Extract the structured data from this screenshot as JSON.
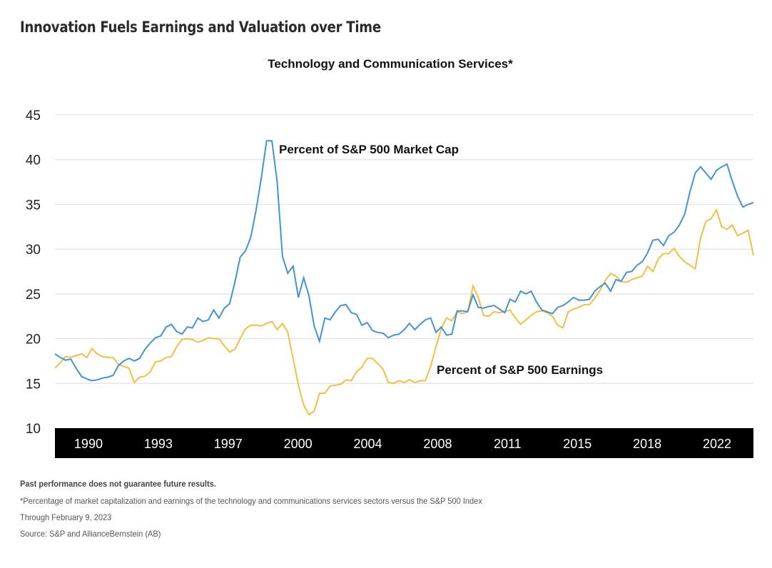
{
  "header": {
    "title": "Innovation Fuels Earnings and Valuation over Time"
  },
  "chart_data": {
    "type": "line",
    "title": "Technology and Communication Services*",
    "xlabel": "",
    "ylabel": "",
    "ylim": [
      10,
      45
    ],
    "yticks": [
      "45",
      "40",
      "35",
      "30",
      "25",
      "20",
      "15",
      "10"
    ],
    "ytick_values": [
      45,
      40,
      35,
      30,
      25,
      20,
      15,
      10
    ],
    "xticks": [
      "1990",
      "1993",
      "1997",
      "2000",
      "2004",
      "2008",
      "2011",
      "2015",
      "2018",
      "2022"
    ],
    "grid": true,
    "colors": {
      "market_cap": "#4394d0",
      "earnings": "#f2bf45",
      "axis_band": "#000000",
      "grid": "#e3e3e3"
    },
    "annotations": [
      "Percent of S&P 500 Market Cap",
      "Percent of S&P 500 Earnings"
    ],
    "series": [
      {
        "name": "Percent of S&P 500 Market Cap",
        "values": [
          18.3,
          17.9,
          17.6,
          17.7,
          16.7,
          15.8,
          15.5,
          15.3,
          15.4,
          15.6,
          15.7,
          15.9,
          17.0,
          17.5,
          17.8,
          17.5,
          17.8,
          18.8,
          19.5,
          20.1,
          20.3,
          21.3,
          21.6,
          20.8,
          20.5,
          21.3,
          21.2,
          22.3,
          21.9,
          22.1,
          23.2,
          22.3,
          23.4,
          23.9,
          26.3,
          29.1,
          29.8,
          31.3,
          34.3,
          38.0,
          42.1,
          42.1,
          37.5,
          29.2,
          27.3,
          28.1,
          24.6,
          26.8,
          24.8,
          21.4,
          19.7,
          22.3,
          22.1,
          23.0,
          23.7,
          23.8,
          22.9,
          22.7,
          21.5,
          21.8,
          20.9,
          20.7,
          20.6,
          20.1,
          20.4,
          20.5,
          21.0,
          21.7,
          21.0,
          21.6,
          22.1,
          22.3,
          20.7,
          21.3,
          20.4,
          20.5,
          23.1,
          23.1,
          23.0,
          24.9,
          23.5,
          23.4,
          23.6,
          23.7,
          23.3,
          22.9,
          24.4,
          24.1,
          25.3,
          25.0,
          25.3,
          24.1,
          23.2,
          23.0,
          22.8,
          23.5,
          23.7,
          24.1,
          24.6,
          24.3,
          24.3,
          24.4,
          25.3,
          25.8,
          26.2,
          25.3,
          26.6,
          26.4,
          27.4,
          27.5,
          28.2,
          28.6,
          29.6,
          31.0,
          31.1,
          30.4,
          31.5,
          31.9,
          32.7,
          33.9,
          36.4,
          38.5,
          39.2,
          38.5,
          37.8,
          38.8,
          39.2,
          39.5,
          37.6,
          35.9,
          34.7,
          35.0,
          35.2
        ]
      },
      {
        "name": "Percent of S&P 500 Earnings",
        "values": [
          16.7,
          17.3,
          18.0,
          17.9,
          18.1,
          18.3,
          17.9,
          18.9,
          18.3,
          18.0,
          17.9,
          17.9,
          17.1,
          16.9,
          16.7,
          15.1,
          15.7,
          15.8,
          16.3,
          17.4,
          17.5,
          17.9,
          18.0,
          19.1,
          19.9,
          20.0,
          19.9,
          19.6,
          19.8,
          20.1,
          20.0,
          20.0,
          19.2,
          18.5,
          18.8,
          20.0,
          21.1,
          21.5,
          21.5,
          21.4,
          21.7,
          21.9,
          21.0,
          21.7,
          20.7,
          17.8,
          14.8,
          12.6,
          11.5,
          11.9,
          13.9,
          13.9,
          14.7,
          14.8,
          14.9,
          15.4,
          15.3,
          16.3,
          16.8,
          17.8,
          17.8,
          17.2,
          16.6,
          15.1,
          15.0,
          15.3,
          15.1,
          15.4,
          15.1,
          15.3,
          15.3,
          16.9,
          19.1,
          21.1,
          22.3,
          22.0,
          23.0,
          22.8,
          23.0,
          25.9,
          24.6,
          22.6,
          22.5,
          23.0,
          22.9,
          23.0,
          23.2,
          22.3,
          21.6,
          22.1,
          22.6,
          23.0,
          23.1,
          22.9,
          22.5,
          21.5,
          21.2,
          23.0,
          23.3,
          23.5,
          23.8,
          23.8,
          24.5,
          25.4,
          26.5,
          27.3,
          27.0,
          26.4,
          26.3,
          26.6,
          26.8,
          27.0,
          28.1,
          27.5,
          28.9,
          29.5,
          29.5,
          30.1,
          29.2,
          28.6,
          28.2,
          27.8,
          31.2,
          33.1,
          33.4,
          34.4,
          32.5,
          32.2,
          32.7,
          31.5,
          31.8,
          32.1,
          29.3
        ]
      }
    ]
  },
  "footer": {
    "disclaimer": "Past performance does not guarantee future results.",
    "note": "*Percentage of market capitalization and earnings of the technology and communications services sectors versus the S&P 500 Index",
    "date": "Through February 9, 2023",
    "source": "Source: S&P and AllianceBernstein (AB)"
  }
}
